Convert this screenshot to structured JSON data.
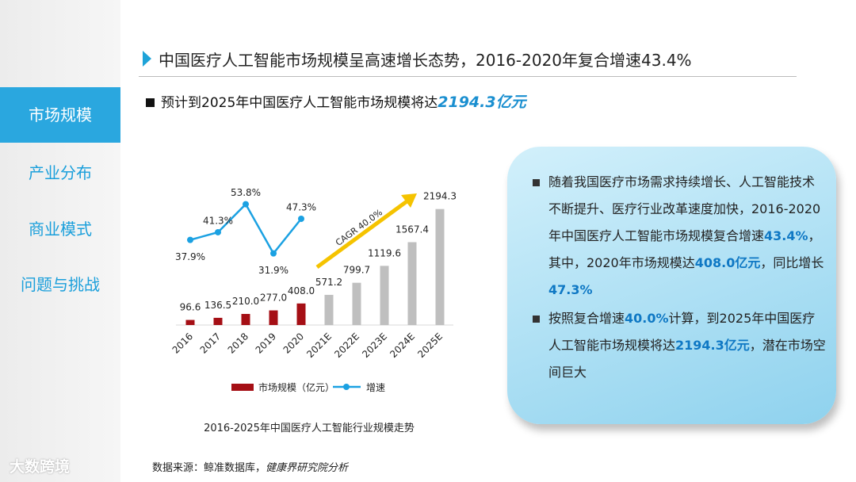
{
  "sidebar": {
    "items": [
      "市场规模",
      "产业分布",
      "商业模式",
      "问题与挑战"
    ],
    "logo": "大数跨境"
  },
  "header": {
    "title": "中国医疗人工智能市场规模呈高速增长态势，2016-2020年复合增速43.4%",
    "subtitle": "预计到2025年中国医疗人工智能市场规模将达",
    "subtitle_highlight": "2194.3亿元"
  },
  "chart_data": {
    "type": "bar_line",
    "title": "2016-2025年中国医疗人工智能行业规模走势",
    "categories": [
      "2016",
      "2017",
      "2018",
      "2019",
      "2020",
      "2021E",
      "2022E",
      "2023E",
      "2024E",
      "2025E"
    ],
    "series": [
      {
        "name": "市场规模（亿元）",
        "type": "bar",
        "colors": [
          "#a50f15",
          "#a50f15",
          "#a50f15",
          "#a50f15",
          "#a50f15",
          "#bfbfbf",
          "#bfbfbf",
          "#bfbfbf",
          "#bfbfbf",
          "#bfbfbf"
        ],
        "color": "#a50f15",
        "values": [
          96.6,
          136.5,
          210.0,
          277.0,
          408.0,
          571.2,
          799.7,
          1119.6,
          1567.4,
          2194.3
        ],
        "value_labels": [
          "96.6",
          "136.5",
          "210.0",
          "277.0",
          "408.0",
          "571.2",
          "799.7",
          "1119.6",
          "1567.4",
          "2194.3"
        ]
      },
      {
        "name": "增速",
        "type": "line",
        "axis": "y2",
        "color": "#1ba1e2",
        "values": [
          37.9,
          41.3,
          53.8,
          31.9,
          47.3,
          null,
          null,
          null,
          null,
          null
        ],
        "value_labels": [
          "37.9%",
          "41.3%",
          "53.8%",
          "31.9%",
          "47.3%",
          null,
          null,
          null,
          null,
          null
        ]
      }
    ],
    "ylim": [
      0,
      2550
    ],
    "y2lim": [
      0,
      60
    ],
    "annotation": {
      "text": "CAGR 40.0%",
      "color": "#f5c300"
    },
    "legend": "bottom"
  },
  "note": {
    "paragraphs": [
      [
        "随着我国医疗市场需求持续增长、人工智能技术不断提升、医疗行业改革速度加快，2016-2020年中国医疗人工智能市场规模复合增速",
        "43.4%",
        "，其中，2020年市场规模达",
        "408.0亿元",
        "，同比增长",
        "47.3%"
      ],
      [
        "按照复合增速",
        "40.0%",
        "计算，到2025年中国医疗人工智能市场规模将达",
        "2194.3亿元",
        "，潜在市场空间巨大"
      ]
    ]
  },
  "source": {
    "text": "数据来源：鲸准数据库，",
    "italic": "健康界研究院分析"
  }
}
